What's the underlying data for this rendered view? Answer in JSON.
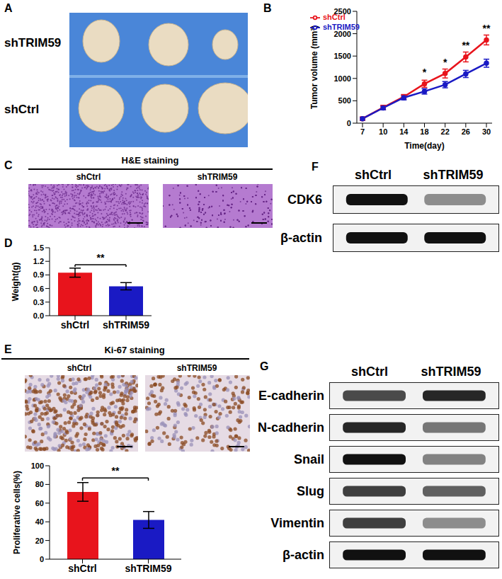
{
  "chart_data": [
    {
      "panel": "B",
      "type": "line",
      "y_label": "Tumor volume (mm³)",
      "x_label": "Time(day)",
      "categories": [
        "7",
        "10",
        "14",
        "18",
        "22",
        "26",
        "30"
      ],
      "ylim": [
        0,
        2500
      ],
      "yticks": [
        0,
        500,
        1000,
        1500,
        2000,
        2500
      ],
      "legend": "upper left",
      "series": [
        {
          "name": "shCtrl",
          "color": "#e8141c",
          "marker": "circle",
          "values": [
            100,
            350,
            590,
            880,
            1110,
            1480,
            1860
          ],
          "errors": [
            40,
            50,
            50,
            80,
            100,
            110,
            110
          ]
        },
        {
          "name": "shTRIM59",
          "color": "#1a1ac4",
          "marker": "circle",
          "values": [
            100,
            340,
            570,
            710,
            860,
            1100,
            1340
          ],
          "errors": [
            30,
            40,
            50,
            60,
            70,
            80,
            90
          ]
        }
      ],
      "annotations": [
        {
          "category": "18",
          "text": "*"
        },
        {
          "category": "22",
          "text": "*"
        },
        {
          "category": "26",
          "text": "**"
        },
        {
          "category": "30",
          "text": "**"
        }
      ]
    },
    {
      "panel": "D",
      "type": "bar",
      "y_label": "Weight(g)",
      "categories": [
        "shCtrl",
        "shTRIM59"
      ],
      "values": [
        0.95,
        0.65
      ],
      "errors": [
        0.1,
        0.08
      ],
      "colors": [
        "#e8141c",
        "#1a1ac4"
      ],
      "ylim": [
        0,
        1.5
      ],
      "yticks": [
        {
          "value": 0,
          "label": "0.0"
        },
        0.3,
        0.6,
        0.9,
        1.2,
        1.5
      ],
      "annotations": [
        {
          "text": "**"
        }
      ]
    },
    {
      "type": "bar",
      "y_label": "Proliferative cells(%)",
      "categories": [
        "shCtrl",
        "shTRIM59"
      ],
      "values": [
        72,
        42
      ],
      "errors": [
        10,
        9
      ],
      "colors": [
        "#e8141c",
        "#1a1ac4"
      ],
      "ylim": [
        0,
        100
      ],
      "yticks": [
        0,
        20,
        40,
        60,
        80,
        100
      ],
      "annotations": [
        {
          "text": "**"
        }
      ]
    }
  ],
  "panels": {
    "A": {
      "label": "A",
      "rows": [
        "shTRIM59",
        "shCtrl"
      ]
    },
    "C": {
      "label": "C",
      "title": "H&E staining",
      "columns": [
        "shCtrl",
        "shTRIM59"
      ]
    },
    "E": {
      "label": "E",
      "title": "Ki-67 staining",
      "columns": [
        "shCtrl",
        "shTRIM59"
      ]
    },
    "F": {
      "label": "F",
      "columns": [
        "shCtrl",
        "shTRIM59"
      ],
      "rows": [
        {
          "name": "CDK6",
          "intensity": [
            1,
            0.45
          ]
        },
        {
          "name": "β-actin",
          "intensity": [
            1,
            1
          ]
        }
      ]
    },
    "G": {
      "label": "G",
      "columns": [
        "shCtrl",
        "shTRIM59"
      ],
      "rows": [
        {
          "name": "E-cadherin",
          "intensity": [
            0.75,
            0.9
          ]
        },
        {
          "name": "N-cadherin",
          "intensity": [
            0.9,
            0.55
          ]
        },
        {
          "name": "Snail",
          "intensity": [
            1,
            0.5
          ]
        },
        {
          "name": "Slug",
          "intensity": [
            0.8,
            0.65
          ]
        },
        {
          "name": "Vimentin",
          "intensity": [
            0.8,
            0.45
          ]
        },
        {
          "name": "β-actin",
          "intensity": [
            1,
            1
          ]
        }
      ]
    }
  }
}
